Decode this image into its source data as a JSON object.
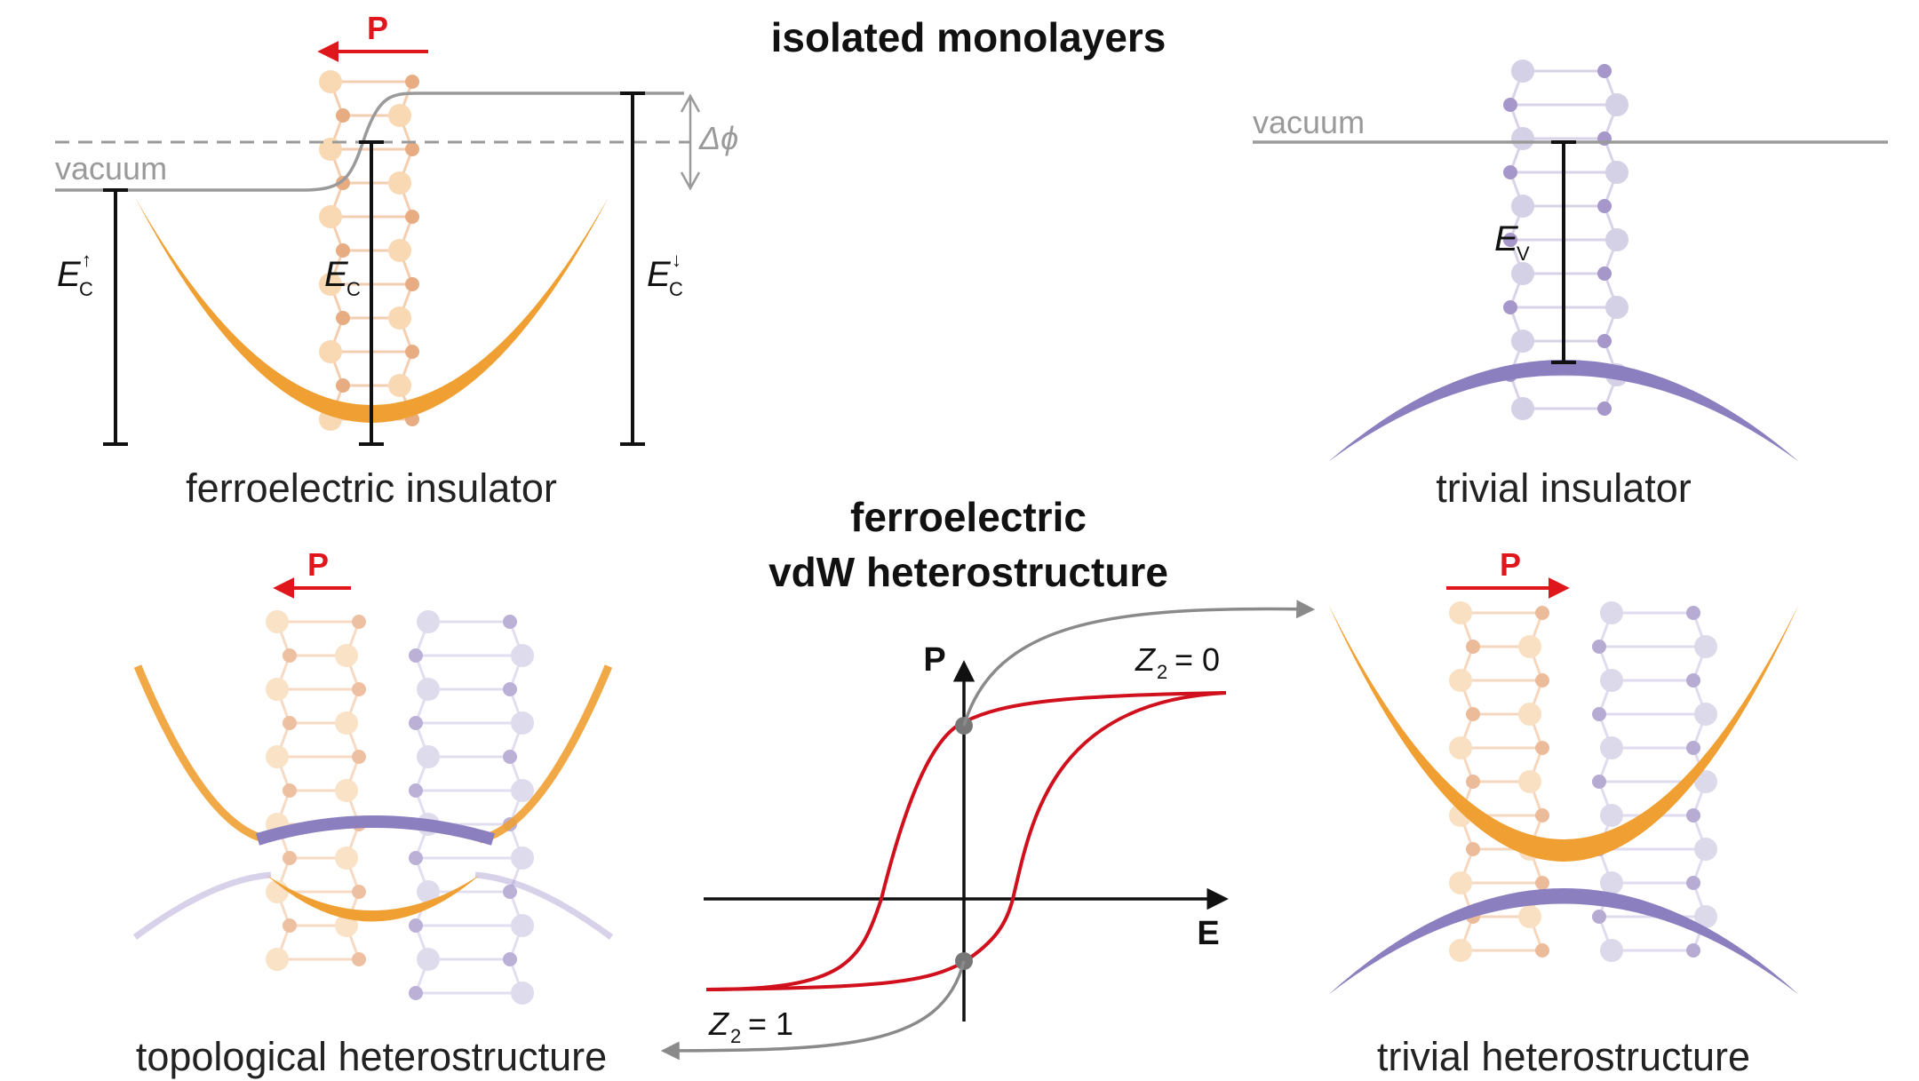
{
  "headings": {
    "top": "isolated monolayers",
    "middle_line1": "ferroelectric",
    "middle_line2": "vdW heterostructure"
  },
  "panels": {
    "ferroelectric_insulator": {
      "caption": "ferroelectric insulator",
      "polarization": "P",
      "vacuum_label": "vacuum",
      "work_function_shift": "Δϕ",
      "levels": {
        "left": {
          "symbol": "E",
          "sub": "C",
          "sup": "↑"
        },
        "middle": {
          "symbol": "E",
          "sub": "C"
        },
        "right": {
          "symbol": "E",
          "sub": "C",
          "sup": "↓"
        }
      }
    },
    "trivial_insulator": {
      "caption": "trivial insulator",
      "vacuum_label": "vacuum",
      "level": {
        "symbol": "E",
        "sub": "V"
      }
    },
    "topological_heterostructure": {
      "caption": "topological heterostructure",
      "polarization": "P"
    },
    "trivial_heterostructure": {
      "caption": "trivial heterostructure",
      "polarization": "P"
    }
  },
  "hysteresis": {
    "y_axis_label": "P",
    "x_axis_label": "E",
    "upper_state": {
      "symbol": "Z",
      "sub": "2",
      "value": "= 0"
    },
    "lower_state": {
      "symbol": "Z",
      "sub": "2",
      "value": "= 1"
    }
  },
  "colors": {
    "ferroelectric_band": "#f0a033",
    "trivial_band": "#8b7fbf",
    "polarization_arrow": "#e0161d",
    "hysteresis_loop": "#d0101c",
    "vacuum_line": "#9a9a9a",
    "atom_light_orange": "#f8d9b4",
    "atom_dark_orange": "#e8ac82",
    "atom_light_purple": "#d4d0e6",
    "atom_dark_purple": "#a597c9",
    "state_marker": "#777777"
  }
}
